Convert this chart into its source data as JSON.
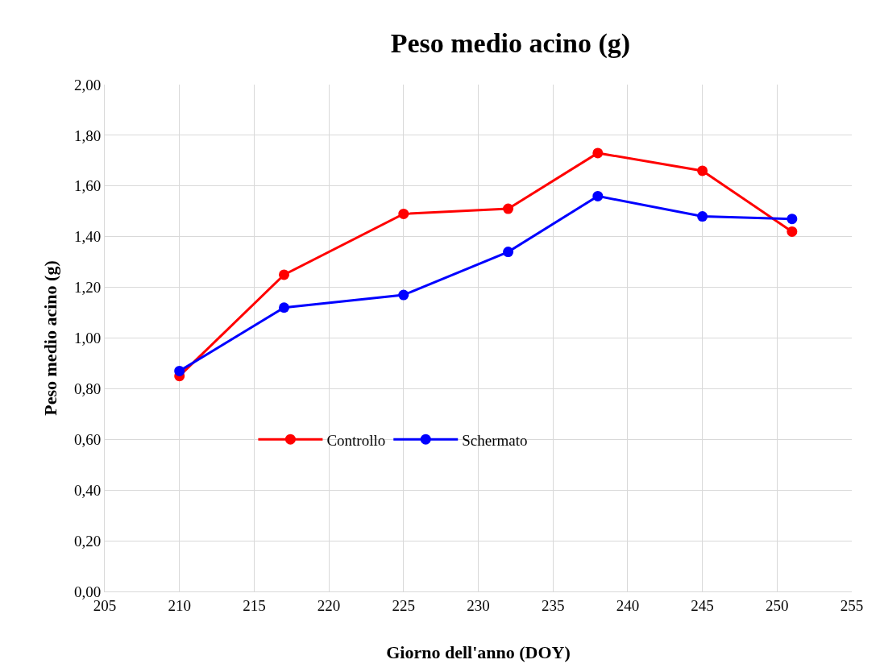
{
  "chart_data": {
    "type": "line",
    "title": "Peso medio acino (g)",
    "xlabel": "Giorno dell'anno (DOY)",
    "ylabel": "Peso medio acino (g)",
    "x": [
      210,
      217,
      225,
      232,
      238,
      245,
      251
    ],
    "series": [
      {
        "name": "Controllo",
        "color": "#ff0000",
        "values": [
          0.85,
          1.25,
          1.49,
          1.51,
          1.73,
          1.66,
          1.42
        ]
      },
      {
        "name": "Schermato",
        "color": "#0000ff",
        "values": [
          0.87,
          1.12,
          1.17,
          1.34,
          1.56,
          1.48,
          1.47
        ]
      }
    ],
    "xlim": [
      205,
      255
    ],
    "xticks": [
      205,
      210,
      215,
      220,
      225,
      230,
      235,
      240,
      245,
      250,
      255
    ],
    "ylim": [
      0,
      2
    ],
    "yticks": [
      {
        "value": 0,
        "label": "0,00"
      },
      {
        "value": 0.2,
        "label": "0,20"
      },
      {
        "value": 0.4,
        "label": "0,40"
      },
      {
        "value": 0.6,
        "label": "0,60"
      },
      {
        "value": 0.8,
        "label": "0,80"
      },
      {
        "value": 1.0,
        "label": "1,00"
      },
      {
        "value": 1.2,
        "label": "1,20"
      },
      {
        "value": 1.4,
        "label": "1,40"
      },
      {
        "value": 1.6,
        "label": "1,60"
      },
      {
        "value": 1.8,
        "label": "1,80"
      },
      {
        "value": 2.0,
        "label": "2,00"
      }
    ],
    "grid": true,
    "legend": "left",
    "marker": "circle",
    "line_style": "solid"
  }
}
